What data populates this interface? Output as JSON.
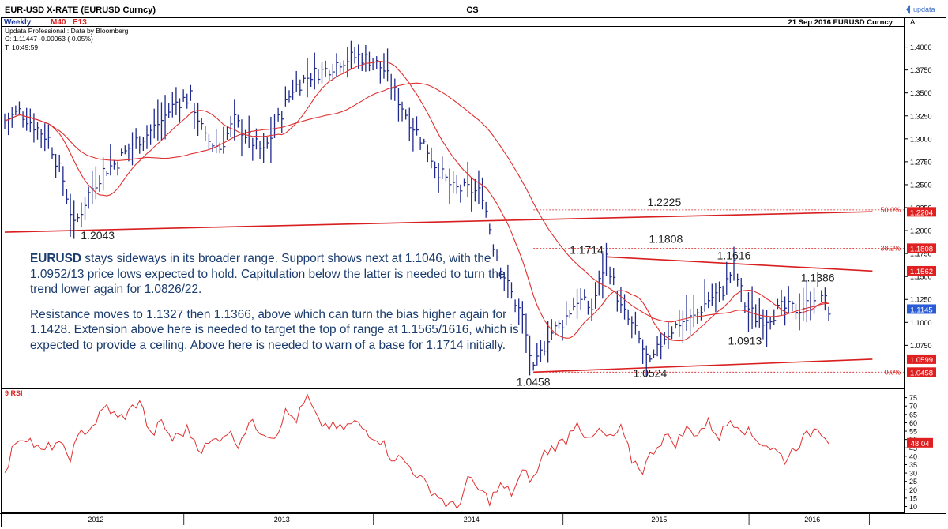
{
  "header": {
    "title": "EUR-USD X-RATE (EURUSD Curncy)",
    "center": "CS",
    "logo": "updata",
    "weekly": "Weekly",
    "m40": "M40",
    "e13": "E13",
    "source": "Updata Professional : Data by Bloomberg",
    "close_line": "C: 1.11447  -0.00063 (-0.05%)",
    "time_line": "T: 10:49:59",
    "date_label": "21 Sep 2016  EURUSD Curncy",
    "axis_label": "Ar"
  },
  "rsi_label": "9 RSI",
  "commentary": {
    "p1_lead": "EURUSD",
    "p1": " stays sideways in its broader range.  Support shows next at 1.1046, with the 1.0952/13 price lows expected to hold.  Capitulation below the latter is needed to turn the trend lower again for 1.0826/22.",
    "p2": "Resistance moves to 1.1327 then  1.1366, above which can turn the bias higher again for 1.1428.  Extension above here is needed to target the top of range at 1.1565/1616, which is expected to provide a ceiling.  Above here is needed to warn of a base for 1.1714 initially."
  },
  "colors": {
    "price_bars": "#1f2a8c",
    "moving_average": "#e03030",
    "trendline": "#d81e1e",
    "rsi": "#e03030",
    "label_box": "#e02020",
    "commentary_text": "#1a3c6e",
    "title_blue": "#1d3a9a"
  },
  "chart_data": [
    {
      "type": "ohlc",
      "name": "price",
      "x_axis": {
        "categories": [
          "2012",
          "2013",
          "2014",
          "2015",
          "2016"
        ]
      },
      "y_axis": {
        "range": [
          1.028,
          1.422
        ],
        "ticks": [
          1.075,
          1.1,
          1.125,
          1.15,
          1.175,
          1.2,
          1.225,
          1.25,
          1.275,
          1.3,
          1.325,
          1.35,
          1.375,
          1.4
        ],
        "tick_labels": [
          "1.0750",
          "1.1000",
          "1.1250",
          "1.1500",
          "1.1750",
          "1.2000",
          "1.2250",
          "1.2500",
          "1.2750",
          "1.3000",
          "1.3250",
          "1.3500",
          "1.3750",
          "1.4000"
        ]
      },
      "series": [
        {
          "name": "M40",
          "kind": "moving-average"
        },
        {
          "name": "E13",
          "kind": "moving-average"
        }
      ],
      "value_tags": [
        "1.2204",
        "1.1808",
        "1.1562",
        "1.1145",
        "1.0599",
        "1.0458"
      ],
      "fib_labels": [
        "50.0%",
        "38.2%",
        "0.0%"
      ],
      "fib_levels": [
        1.2225,
        1.1808,
        1.0458
      ],
      "annotations": [
        {
          "text": "1.2043",
          "week": 19,
          "value": 1.2043
        },
        {
          "text": "1.2225",
          "week": 177,
          "value": 1.2225
        },
        {
          "text": "1.1808",
          "week": 177,
          "value": 1.1808
        },
        {
          "text": "1.1714",
          "week": 165,
          "value": 1.1714
        },
        {
          "text": "1.1616",
          "week": 200,
          "value": 1.1616
        },
        {
          "text": "1.1386",
          "week": 223,
          "value": 1.1386
        },
        {
          "text": "1.0913",
          "week": 203,
          "value": 1.0913
        },
        {
          "text": "1.0458",
          "week": 145,
          "value": 1.0458
        },
        {
          "text": "1.0524",
          "week": 177,
          "value": 1.0524
        }
      ],
      "anchors": [
        [
          0,
          1.32
        ],
        [
          4,
          1.33
        ],
        [
          8,
          1.315
        ],
        [
          12,
          1.3
        ],
        [
          16,
          1.255
        ],
        [
          19,
          1.2043
        ],
        [
          23,
          1.24
        ],
        [
          27,
          1.265
        ],
        [
          31,
          1.275
        ],
        [
          35,
          1.295
        ],
        [
          39,
          1.305
        ],
        [
          43,
          1.32
        ],
        [
          47,
          1.34
        ],
        [
          51,
          1.345
        ],
        [
          55,
          1.3
        ],
        [
          59,
          1.29
        ],
        [
          63,
          1.32
        ],
        [
          67,
          1.3
        ],
        [
          71,
          1.285
        ],
        [
          75,
          1.32
        ],
        [
          79,
          1.355
        ],
        [
          84,
          1.37
        ],
        [
          88,
          1.375
        ],
        [
          92,
          1.385
        ],
        [
          97,
          1.39
        ],
        [
          101,
          1.385
        ],
        [
          104,
          1.375
        ],
        [
          107,
          1.35
        ],
        [
          111,
          1.32
        ],
        [
          115,
          1.295
        ],
        [
          119,
          1.265
        ],
        [
          123,
          1.245
        ],
        [
          127,
          1.245
        ],
        [
          131,
          1.24
        ],
        [
          134,
          1.185
        ],
        [
          138,
          1.14
        ],
        [
          142,
          1.105
        ],
        [
          145,
          1.0458
        ],
        [
          149,
          1.085
        ],
        [
          153,
          1.1
        ],
        [
          157,
          1.125
        ],
        [
          161,
          1.115
        ],
        [
          165,
          1.1714
        ],
        [
          169,
          1.115
        ],
        [
          173,
          1.09
        ],
        [
          177,
          1.0524
        ],
        [
          181,
          1.085
        ],
        [
          185,
          1.1
        ],
        [
          189,
          1.105
        ],
        [
          193,
          1.125
        ],
        [
          197,
          1.135
        ],
        [
          200,
          1.1616
        ],
        [
          203,
          1.12
        ],
        [
          206,
          1.105
        ],
        [
          209,
          1.105
        ],
        [
          213,
          1.115
        ],
        [
          217,
          1.115
        ],
        [
          221,
          1.12
        ],
        [
          223,
          1.1386
        ],
        [
          226,
          1.1145
        ]
      ],
      "trendlines": [
        {
          "from": [
            0,
            1.1983
          ],
          "to": [
            238,
            1.2206
          ]
        },
        {
          "from": [
            165,
            1.1714
          ],
          "to": [
            238,
            1.1559
          ]
        },
        {
          "from": [
            145,
            1.0458
          ],
          "to": [
            238,
            1.0599
          ]
        }
      ],
      "fib_extent": [
        [
          145,
          1.2225
        ],
        [
          145,
          1.1808
        ],
        [
          145,
          1.0458
        ]
      ]
    },
    {
      "type": "line",
      "name": "9 RSI",
      "y_axis": {
        "range": [
          6,
          80
        ],
        "ticks": [
          10,
          15,
          20,
          25,
          30,
          35,
          40,
          45,
          50,
          55,
          60,
          65,
          70,
          75
        ],
        "tick_labels": [
          "10",
          "15",
          "20",
          "25",
          "30",
          "35",
          "40",
          "45",
          "50",
          "55",
          "60",
          "65",
          "70",
          "75"
        ]
      },
      "last_value_label": "48.04",
      "anchors": [
        [
          0,
          28
        ],
        [
          3,
          50
        ],
        [
          6,
          52
        ],
        [
          10,
          42
        ],
        [
          14,
          48
        ],
        [
          18,
          40
        ],
        [
          21,
          54
        ],
        [
          24,
          58
        ],
        [
          28,
          70
        ],
        [
          31,
          62
        ],
        [
          34,
          66
        ],
        [
          37,
          74
        ],
        [
          40,
          52
        ],
        [
          43,
          60
        ],
        [
          46,
          50
        ],
        [
          50,
          56
        ],
        [
          54,
          44
        ],
        [
          58,
          50
        ],
        [
          61,
          55
        ],
        [
          64,
          48
        ],
        [
          67,
          60
        ],
        [
          70,
          56
        ],
        [
          74,
          52
        ],
        [
          77,
          66
        ],
        [
          80,
          62
        ],
        [
          83,
          75
        ],
        [
          86,
          60
        ],
        [
          89,
          58
        ],
        [
          92,
          56
        ],
        [
          96,
          60
        ],
        [
          100,
          54
        ],
        [
          103,
          50
        ],
        [
          106,
          40
        ],
        [
          109,
          38
        ],
        [
          112,
          32
        ],
        [
          115,
          24
        ],
        [
          118,
          18
        ],
        [
          121,
          12
        ],
        [
          124,
          9
        ],
        [
          127,
          26
        ],
        [
          130,
          20
        ],
        [
          133,
          14
        ],
        [
          136,
          22
        ],
        [
          139,
          18
        ],
        [
          142,
          30
        ],
        [
          145,
          26
        ],
        [
          148,
          42
        ],
        [
          151,
          46
        ],
        [
          154,
          50
        ],
        [
          157,
          62
        ],
        [
          160,
          48
        ],
        [
          163,
          55
        ],
        [
          166,
          50
        ],
        [
          169,
          56
        ],
        [
          172,
          38
        ],
        [
          175,
          32
        ],
        [
          178,
          44
        ],
        [
          181,
          52
        ],
        [
          184,
          48
        ],
        [
          187,
          56
        ],
        [
          190,
          54
        ],
        [
          193,
          60
        ],
        [
          196,
          52
        ],
        [
          199,
          62
        ],
        [
          202,
          58
        ],
        [
          205,
          52
        ],
        [
          208,
          48
        ],
        [
          211,
          44
        ],
        [
          214,
          38
        ],
        [
          217,
          46
        ],
        [
          220,
          52
        ],
        [
          223,
          58
        ],
        [
          226,
          50
        ]
      ]
    }
  ]
}
